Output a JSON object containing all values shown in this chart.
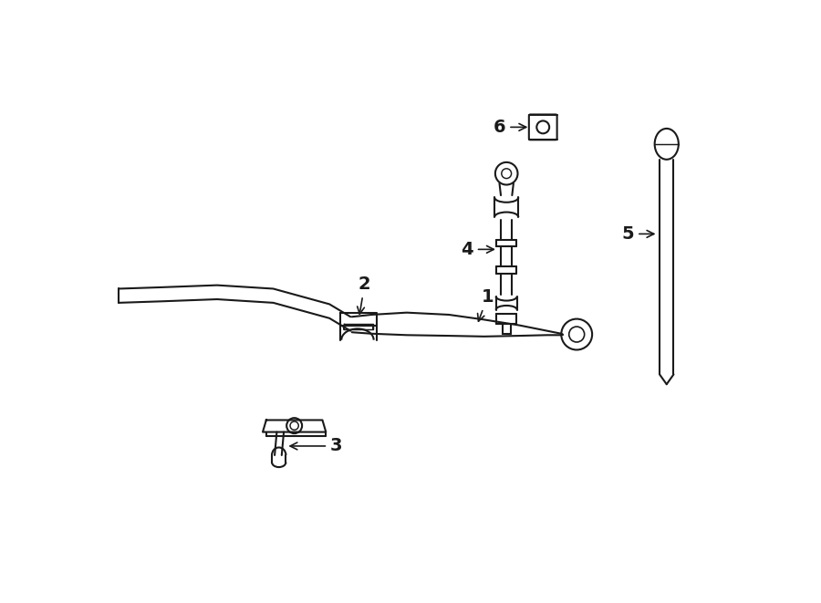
{
  "background_color": "#ffffff",
  "line_color": "#1a1a1a",
  "line_width": 1.5,
  "parts": [
    {
      "id": 1,
      "label": "1"
    },
    {
      "id": 2,
      "label": "2"
    },
    {
      "id": 3,
      "label": "3"
    },
    {
      "id": 4,
      "label": "4"
    },
    {
      "id": 5,
      "label": "5"
    },
    {
      "id": 6,
      "label": "6"
    }
  ]
}
